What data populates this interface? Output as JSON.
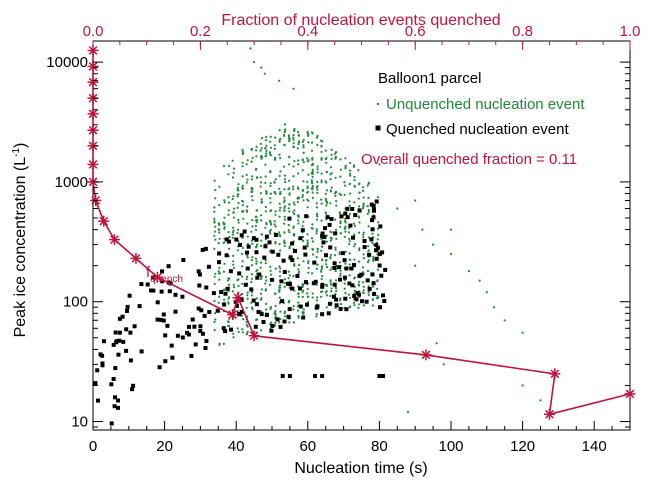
{
  "chart_data": {
    "type": "scatter",
    "title": "",
    "xlabel": "Nucleation time (s)",
    "ylabel": "Peak ice concentration (L",
    "ylabel_sup": "-1",
    "ylabel_close": ")",
    "x2label": "Fraction of nucleation events quenched",
    "xlim": [
      0,
      150
    ],
    "ylim": [
      8.5,
      15000
    ],
    "yscale": "log",
    "x2lim": [
      0.0,
      1.0
    ],
    "xticks": [
      0,
      20,
      40,
      60,
      80,
      100,
      120,
      140
    ],
    "xtick_labels": [
      "0",
      "20",
      "40",
      "60",
      "80",
      "100",
      "120",
      "140"
    ],
    "yticks": [
      10,
      100,
      1000,
      10000
    ],
    "ytick_labels": [
      "10",
      "100",
      "1000",
      "10000"
    ],
    "x2ticks": [
      0.0,
      0.2,
      0.4,
      0.6,
      0.8,
      1.0
    ],
    "x2tick_labels": [
      "0.0",
      "0.2",
      "0.4",
      "0.6",
      "0.8",
      "1.0"
    ],
    "legend": {
      "title": "Balloon1 parcel",
      "unquenched_label": "Unquenched nucleation event",
      "quenched_label": "Quenched nucleation event",
      "overall_label": "Overall quenched fraction =  0.11",
      "placement": "top-right"
    },
    "fquench_label": "f",
    "fquench_sub": "quench",
    "colors": {
      "unquenched": "#1f8a3a",
      "quenched": "#000000",
      "fraction": "#c0143c",
      "axis": "#000000",
      "secondary_axis": "#c0143c"
    },
    "fraction_curve": {
      "name": "",
      "fraction": [
        0.0,
        0.0,
        0.0,
        0.0,
        0.0,
        0.0,
        0.0,
        0.0,
        0.0,
        0.005,
        0.02,
        0.04,
        0.08,
        0.12,
        0.26,
        0.27,
        0.3,
        0.62,
        0.86,
        0.85,
        1.0
      ],
      "y": [
        12500,
        9200,
        6800,
        5000,
        3700,
        2700,
        2000,
        1400,
        1000,
        700,
        470,
        330,
        230,
        160,
        78,
        108,
        52,
        36,
        25,
        11.5,
        17
      ]
    },
    "scatter_description_ranges": {
      "unquenched_x": [
        34,
        125
      ],
      "unquenched_y": [
        12,
        13000
      ],
      "quenched_x": [
        0,
        82
      ],
      "quenched_y": [
        8,
        1100
      ]
    }
  }
}
